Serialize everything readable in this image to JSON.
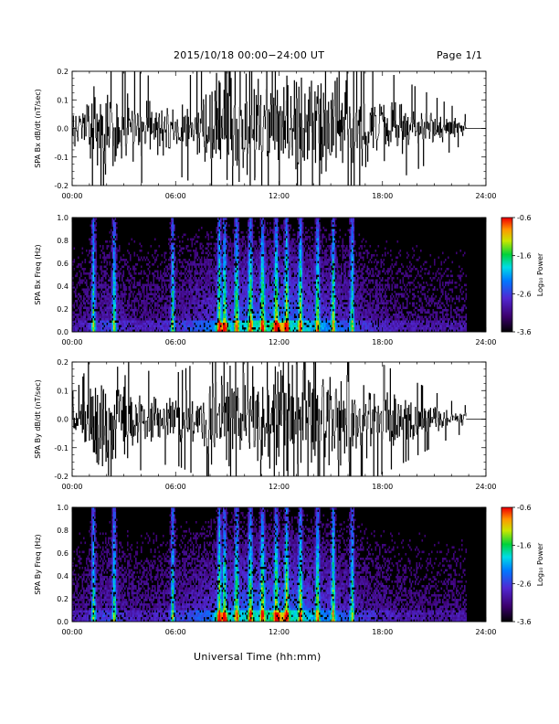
{
  "header": {
    "title": "2015/10/18   00:00−24:00 UT",
    "page": "Page 1/1"
  },
  "xaxis_label": "Universal Time (hh:mm)",
  "colorbar_label": "Log₁₀ Power",
  "chart_data": [
    {
      "type": "line",
      "ylabel": "SPA Bx dB/dt (nT/sec)",
      "xlim": [
        0,
        24
      ],
      "xticks": [
        "00:00",
        "06:00",
        "12:00",
        "18:00",
        "24:00"
      ],
      "ylim": [
        -0.2,
        0.2
      ],
      "yticks": [
        "-0.2",
        "-0.1",
        "0.0",
        "0.1",
        "0.2"
      ],
      "data_end_hour": 22.85,
      "envelope": {
        "x": [
          0,
          0.5,
          1,
          1.3,
          1.8,
          2.3,
          2.6,
          3,
          4,
          5,
          6,
          7,
          8,
          8.4,
          8.7,
          9.3,
          10,
          11,
          12,
          13,
          14,
          15,
          16,
          17,
          18,
          19,
          20,
          21,
          22,
          22.85
        ],
        "amplitude": [
          0.07,
          0.09,
          0.15,
          0.2,
          0.2,
          0.2,
          0.2,
          0.17,
          0.12,
          0.11,
          0.1,
          0.12,
          0.16,
          0.22,
          0.22,
          0.22,
          0.22,
          0.22,
          0.22,
          0.22,
          0.22,
          0.22,
          0.2,
          0.16,
          0.13,
          0.11,
          0.09,
          0.07,
          0.05,
          0.03
        ]
      },
      "line_color": "#000000"
    },
    {
      "type": "heatmap",
      "ylabel": "SPA Bx Freq (Hz)",
      "xlim": [
        0,
        24
      ],
      "xticks": [
        "00:00",
        "06:00",
        "12:00",
        "18:00",
        "24:00"
      ],
      "ylim": [
        0,
        1
      ],
      "yticks": [
        "0.0",
        "0.2",
        "0.4",
        "0.6",
        "0.8",
        "1.0"
      ],
      "data_end_hour": 22.85,
      "colorbar": {
        "min": -3.6,
        "max": -0.6,
        "ticks": [
          "-0.6",
          "-1.6",
          "-2.6",
          "-3.6"
        ]
      },
      "bright_bands_hours": [
        1.2,
        2.4,
        5.8,
        8.5,
        8.8,
        9.5,
        10.3,
        11,
        11.8,
        12.4,
        13.2,
        14.2,
        15.1,
        16.2
      ],
      "low_freq_peak_hours": [
        8.7,
        12.0
      ]
    },
    {
      "type": "line",
      "ylabel": "SPA By dB/dt (nT/sec)",
      "xlim": [
        0,
        24
      ],
      "xticks": [
        "00:00",
        "06:00",
        "12:00",
        "18:00",
        "24:00"
      ],
      "ylim": [
        -0.2,
        0.2
      ],
      "yticks": [
        "-0.2",
        "-0.1",
        "0.0",
        "0.1",
        "0.2"
      ],
      "data_end_hour": 22.85,
      "envelope": {
        "x": [
          0,
          0.5,
          1,
          1.3,
          1.8,
          2.3,
          2.6,
          3,
          4,
          5,
          6,
          7,
          8,
          8.4,
          8.7,
          9.3,
          10,
          11,
          12,
          13,
          14,
          15,
          16,
          17,
          18,
          19,
          20,
          21,
          22,
          22.85
        ],
        "amplitude": [
          0.06,
          0.08,
          0.14,
          0.2,
          0.2,
          0.2,
          0.2,
          0.16,
          0.11,
          0.1,
          0.1,
          0.12,
          0.16,
          0.22,
          0.22,
          0.22,
          0.22,
          0.22,
          0.22,
          0.22,
          0.22,
          0.2,
          0.18,
          0.15,
          0.12,
          0.1,
          0.08,
          0.06,
          0.04,
          0.03
        ]
      },
      "line_color": "#000000"
    },
    {
      "type": "heatmap",
      "ylabel": "SPA By Freq (Hz)",
      "xlim": [
        0,
        24
      ],
      "xticks": [
        "00:00",
        "06:00",
        "12:00",
        "18:00",
        "24:00"
      ],
      "ylim": [
        0,
        1
      ],
      "yticks": [
        "0.0",
        "0.2",
        "0.4",
        "0.6",
        "0.8",
        "1.0"
      ],
      "data_end_hour": 22.85,
      "colorbar": {
        "min": -3.6,
        "max": -0.6,
        "ticks": [
          "-0.6",
          "-1.6",
          "-2.6",
          "-3.6"
        ]
      },
      "bright_bands_hours": [
        1.2,
        2.4,
        5.8,
        8.5,
        8.8,
        9.5,
        10.3,
        11,
        11.8,
        12.4,
        13.2,
        14.2,
        15.1,
        16.2
      ],
      "low_freq_peak_hours": [
        8.7,
        12.0
      ]
    }
  ]
}
